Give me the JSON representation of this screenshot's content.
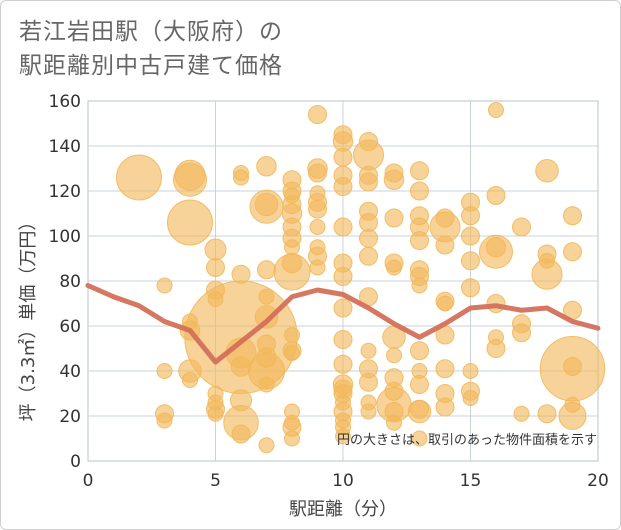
{
  "title_line1": "若江岩田駅（大阪府）の",
  "title_line2": "駅距離別中古戸建て価格",
  "chart_data": {
    "type": "scatter",
    "xlabel": "駅距離（分）",
    "ylabel": "坪（3.3㎡）単価（万円）",
    "xlim": [
      0,
      20
    ],
    "ylim": [
      0,
      160
    ],
    "x_ticks": [
      0,
      5,
      10,
      15,
      20
    ],
    "y_ticks": [
      0,
      20,
      40,
      60,
      80,
      100,
      120,
      140,
      160
    ],
    "note": "円の大きさは、取引のあった物件面積を示す",
    "bubble_color": "#f2b85a",
    "trend_color": "#d4705a",
    "trend_line": {
      "name": "average",
      "x": [
        0,
        1,
        2,
        3,
        4,
        5,
        6,
        7,
        8,
        9,
        10,
        11,
        12,
        13,
        14,
        15,
        16,
        17,
        18,
        19,
        20
      ],
      "y": [
        78,
        73,
        69,
        62,
        58,
        44,
        53,
        62,
        73,
        76,
        74,
        68,
        61,
        55,
        61,
        68,
        69,
        67,
        68,
        62,
        59
      ]
    },
    "points": [
      {
        "x": 2,
        "y": 126,
        "s": 3
      },
      {
        "x": 3,
        "y": 78,
        "s": 1
      },
      {
        "x": 3,
        "y": 40,
        "s": 1
      },
      {
        "x": 3,
        "y": 21,
        "s": 1.2
      },
      {
        "x": 3,
        "y": 18,
        "s": 1
      },
      {
        "x": 4,
        "y": 127,
        "s": 2
      },
      {
        "x": 4,
        "y": 125,
        "s": 2.2
      },
      {
        "x": 4,
        "y": 106,
        "s": 3
      },
      {
        "x": 4,
        "y": 62,
        "s": 1
      },
      {
        "x": 4,
        "y": 58,
        "s": 1.3
      },
      {
        "x": 4,
        "y": 40,
        "s": 1.5
      },
      {
        "x": 4,
        "y": 36,
        "s": 1
      },
      {
        "x": 5,
        "y": 94,
        "s": 1.4
      },
      {
        "x": 5,
        "y": 86,
        "s": 1.2
      },
      {
        "x": 5,
        "y": 76,
        "s": 1.2
      },
      {
        "x": 5,
        "y": 72,
        "s": 1
      },
      {
        "x": 5,
        "y": 30,
        "s": 1
      },
      {
        "x": 5,
        "y": 26,
        "s": 1
      },
      {
        "x": 5,
        "y": 23,
        "s": 1.2
      },
      {
        "x": 5,
        "y": 21,
        "s": 1
      },
      {
        "x": 6,
        "y": 128,
        "s": 1
      },
      {
        "x": 6,
        "y": 126,
        "s": 1
      },
      {
        "x": 6,
        "y": 83,
        "s": 1.2
      },
      {
        "x": 6,
        "y": 55,
        "s": 7.5
      },
      {
        "x": 6,
        "y": 48,
        "s": 2
      },
      {
        "x": 6,
        "y": 42,
        "s": 1.3
      },
      {
        "x": 6,
        "y": 27,
        "s": 1.4
      },
      {
        "x": 6,
        "y": 17,
        "s": 2.3
      },
      {
        "x": 6,
        "y": 12,
        "s": 1.2
      },
      {
        "x": 7,
        "y": 131,
        "s": 1.3
      },
      {
        "x": 7,
        "y": 114,
        "s": 1.5
      },
      {
        "x": 7,
        "y": 113,
        "s": 2.2
      },
      {
        "x": 7,
        "y": 85,
        "s": 1.2
      },
      {
        "x": 7,
        "y": 73,
        "s": 1
      },
      {
        "x": 7,
        "y": 64,
        "s": 1.5
      },
      {
        "x": 7,
        "y": 52,
        "s": 1.2
      },
      {
        "x": 7,
        "y": 46,
        "s": 1.3
      },
      {
        "x": 7,
        "y": 40,
        "s": 2.4
      },
      {
        "x": 7,
        "y": 34,
        "s": 1
      },
      {
        "x": 7,
        "y": 7,
        "s": 1
      },
      {
        "x": 8,
        "y": 125,
        "s": 1.2
      },
      {
        "x": 8,
        "y": 120,
        "s": 1.2
      },
      {
        "x": 8,
        "y": 118,
        "s": 1
      },
      {
        "x": 8,
        "y": 114,
        "s": 1.2
      },
      {
        "x": 8,
        "y": 110,
        "s": 1.3
      },
      {
        "x": 8,
        "y": 104,
        "s": 1.2
      },
      {
        "x": 8,
        "y": 99,
        "s": 1.2
      },
      {
        "x": 8,
        "y": 95,
        "s": 1
      },
      {
        "x": 8,
        "y": 88,
        "s": 1.3
      },
      {
        "x": 8,
        "y": 84,
        "s": 2.4
      },
      {
        "x": 8,
        "y": 56,
        "s": 1
      },
      {
        "x": 8,
        "y": 49,
        "s": 1.2
      },
      {
        "x": 8,
        "y": 48,
        "s": 1
      },
      {
        "x": 8,
        "y": 22,
        "s": 1
      },
      {
        "x": 8,
        "y": 17,
        "s": 1
      },
      {
        "x": 8,
        "y": 15,
        "s": 1.2
      },
      {
        "x": 8,
        "y": 10,
        "s": 1
      },
      {
        "x": 9,
        "y": 154,
        "s": 1.2
      },
      {
        "x": 9,
        "y": 130,
        "s": 1.3
      },
      {
        "x": 9,
        "y": 128,
        "s": 1.2
      },
      {
        "x": 9,
        "y": 119,
        "s": 1
      },
      {
        "x": 9,
        "y": 115,
        "s": 1.2
      },
      {
        "x": 9,
        "y": 112,
        "s": 1.2
      },
      {
        "x": 9,
        "y": 104,
        "s": 1
      },
      {
        "x": 9,
        "y": 95,
        "s": 1
      },
      {
        "x": 9,
        "y": 91,
        "s": 1.2
      },
      {
        "x": 9,
        "y": 86,
        "s": 1
      },
      {
        "x": 10,
        "y": 145,
        "s": 1.2
      },
      {
        "x": 10,
        "y": 142,
        "s": 1.3
      },
      {
        "x": 10,
        "y": 135,
        "s": 1.2
      },
      {
        "x": 10,
        "y": 127,
        "s": 1.2
      },
      {
        "x": 10,
        "y": 122,
        "s": 1.2
      },
      {
        "x": 10,
        "y": 104,
        "s": 1.2
      },
      {
        "x": 10,
        "y": 88,
        "s": 1.2
      },
      {
        "x": 10,
        "y": 82,
        "s": 1.2
      },
      {
        "x": 10,
        "y": 68,
        "s": 1.2
      },
      {
        "x": 10,
        "y": 54,
        "s": 1.2
      },
      {
        "x": 10,
        "y": 43,
        "s": 1.2
      },
      {
        "x": 10,
        "y": 34,
        "s": 1.3
      },
      {
        "x": 10,
        "y": 32,
        "s": 1.2
      },
      {
        "x": 10,
        "y": 30,
        "s": 1.2
      },
      {
        "x": 10,
        "y": 26,
        "s": 1
      },
      {
        "x": 10,
        "y": 22,
        "s": 1.2
      },
      {
        "x": 10,
        "y": 18,
        "s": 1
      },
      {
        "x": 10,
        "y": 15,
        "s": 1
      },
      {
        "x": 10,
        "y": 11,
        "s": 1
      },
      {
        "x": 11,
        "y": 142,
        "s": 1.2
      },
      {
        "x": 11,
        "y": 136,
        "s": 2
      },
      {
        "x": 11,
        "y": 127,
        "s": 1.2
      },
      {
        "x": 11,
        "y": 124,
        "s": 1.2
      },
      {
        "x": 11,
        "y": 111,
        "s": 1.2
      },
      {
        "x": 11,
        "y": 106,
        "s": 1.2
      },
      {
        "x": 11,
        "y": 99,
        "s": 1.2
      },
      {
        "x": 11,
        "y": 91,
        "s": 1.2
      },
      {
        "x": 11,
        "y": 73,
        "s": 1.2
      },
      {
        "x": 11,
        "y": 49,
        "s": 1
      },
      {
        "x": 11,
        "y": 41,
        "s": 1.2
      },
      {
        "x": 11,
        "y": 35,
        "s": 1.2
      },
      {
        "x": 11,
        "y": 26,
        "s": 1
      },
      {
        "x": 11,
        "y": 22,
        "s": 1
      },
      {
        "x": 12,
        "y": 128,
        "s": 1.2
      },
      {
        "x": 12,
        "y": 125,
        "s": 1.3
      },
      {
        "x": 12,
        "y": 108,
        "s": 1.2
      },
      {
        "x": 12,
        "y": 88,
        "s": 1.2
      },
      {
        "x": 12,
        "y": 86,
        "s": 1
      },
      {
        "x": 12,
        "y": 55,
        "s": 1.5
      },
      {
        "x": 12,
        "y": 47,
        "s": 1
      },
      {
        "x": 12,
        "y": 37,
        "s": 1.2
      },
      {
        "x": 12,
        "y": 31,
        "s": 1.2
      },
      {
        "x": 12,
        "y": 25,
        "s": 2.3
      },
      {
        "x": 12,
        "y": 22,
        "s": 1.2
      },
      {
        "x": 12,
        "y": 17,
        "s": 1
      },
      {
        "x": 13,
        "y": 129,
        "s": 1.2
      },
      {
        "x": 13,
        "y": 120,
        "s": 1.2
      },
      {
        "x": 13,
        "y": 109,
        "s": 1.2
      },
      {
        "x": 13,
        "y": 104,
        "s": 1.2
      },
      {
        "x": 13,
        "y": 98,
        "s": 1.2
      },
      {
        "x": 13,
        "y": 85,
        "s": 1.2
      },
      {
        "x": 13,
        "y": 82,
        "s": 1.2
      },
      {
        "x": 13,
        "y": 78,
        "s": 1
      },
      {
        "x": 13,
        "y": 49,
        "s": 1.2
      },
      {
        "x": 13,
        "y": 40,
        "s": 1
      },
      {
        "x": 13,
        "y": 34,
        "s": 1.2
      },
      {
        "x": 13,
        "y": 23,
        "s": 1.2
      },
      {
        "x": 13,
        "y": 22,
        "s": 1.5
      },
      {
        "x": 13,
        "y": 10,
        "s": 1
      },
      {
        "x": 14,
        "y": 108,
        "s": 1.2
      },
      {
        "x": 14,
        "y": 104,
        "s": 2
      },
      {
        "x": 14,
        "y": 96,
        "s": 1.2
      },
      {
        "x": 14,
        "y": 71,
        "s": 1.2
      },
      {
        "x": 14,
        "y": 70,
        "s": 1
      },
      {
        "x": 14,
        "y": 56,
        "s": 1.2
      },
      {
        "x": 14,
        "y": 41,
        "s": 1.2
      },
      {
        "x": 14,
        "y": 30,
        "s": 1.2
      },
      {
        "x": 14,
        "y": 24,
        "s": 1.2
      },
      {
        "x": 15,
        "y": 115,
        "s": 1.2
      },
      {
        "x": 15,
        "y": 109,
        "s": 1.2
      },
      {
        "x": 15,
        "y": 100,
        "s": 1.2
      },
      {
        "x": 15,
        "y": 89,
        "s": 1.2
      },
      {
        "x": 15,
        "y": 77,
        "s": 1.2
      },
      {
        "x": 15,
        "y": 40,
        "s": 1
      },
      {
        "x": 15,
        "y": 31,
        "s": 1.2
      },
      {
        "x": 15,
        "y": 28,
        "s": 1
      },
      {
        "x": 16,
        "y": 156,
        "s": 1
      },
      {
        "x": 16,
        "y": 118,
        "s": 1.2
      },
      {
        "x": 16,
        "y": 95,
        "s": 1.3
      },
      {
        "x": 16,
        "y": 93,
        "s": 2.2
      },
      {
        "x": 16,
        "y": 70,
        "s": 1.2
      },
      {
        "x": 16,
        "y": 55,
        "s": 1
      },
      {
        "x": 16,
        "y": 50,
        "s": 1.2
      },
      {
        "x": 17,
        "y": 104,
        "s": 1.2
      },
      {
        "x": 17,
        "y": 61,
        "s": 1.2
      },
      {
        "x": 17,
        "y": 57,
        "s": 1.2
      },
      {
        "x": 17,
        "y": 21,
        "s": 1
      },
      {
        "x": 18,
        "y": 129,
        "s": 1.5
      },
      {
        "x": 18,
        "y": 92,
        "s": 1.2
      },
      {
        "x": 18,
        "y": 89,
        "s": 1
      },
      {
        "x": 18,
        "y": 83,
        "s": 2
      },
      {
        "x": 18,
        "y": 21,
        "s": 1.2
      },
      {
        "x": 19,
        "y": 109,
        "s": 1.2
      },
      {
        "x": 19,
        "y": 93,
        "s": 1.2
      },
      {
        "x": 19,
        "y": 67,
        "s": 1.2
      },
      {
        "x": 19,
        "y": 42,
        "s": 1.2
      },
      {
        "x": 19,
        "y": 41,
        "s": 4.3
      },
      {
        "x": 19,
        "y": 20,
        "s": 1.8
      },
      {
        "x": 19,
        "y": 25,
        "s": 1
      }
    ]
  }
}
